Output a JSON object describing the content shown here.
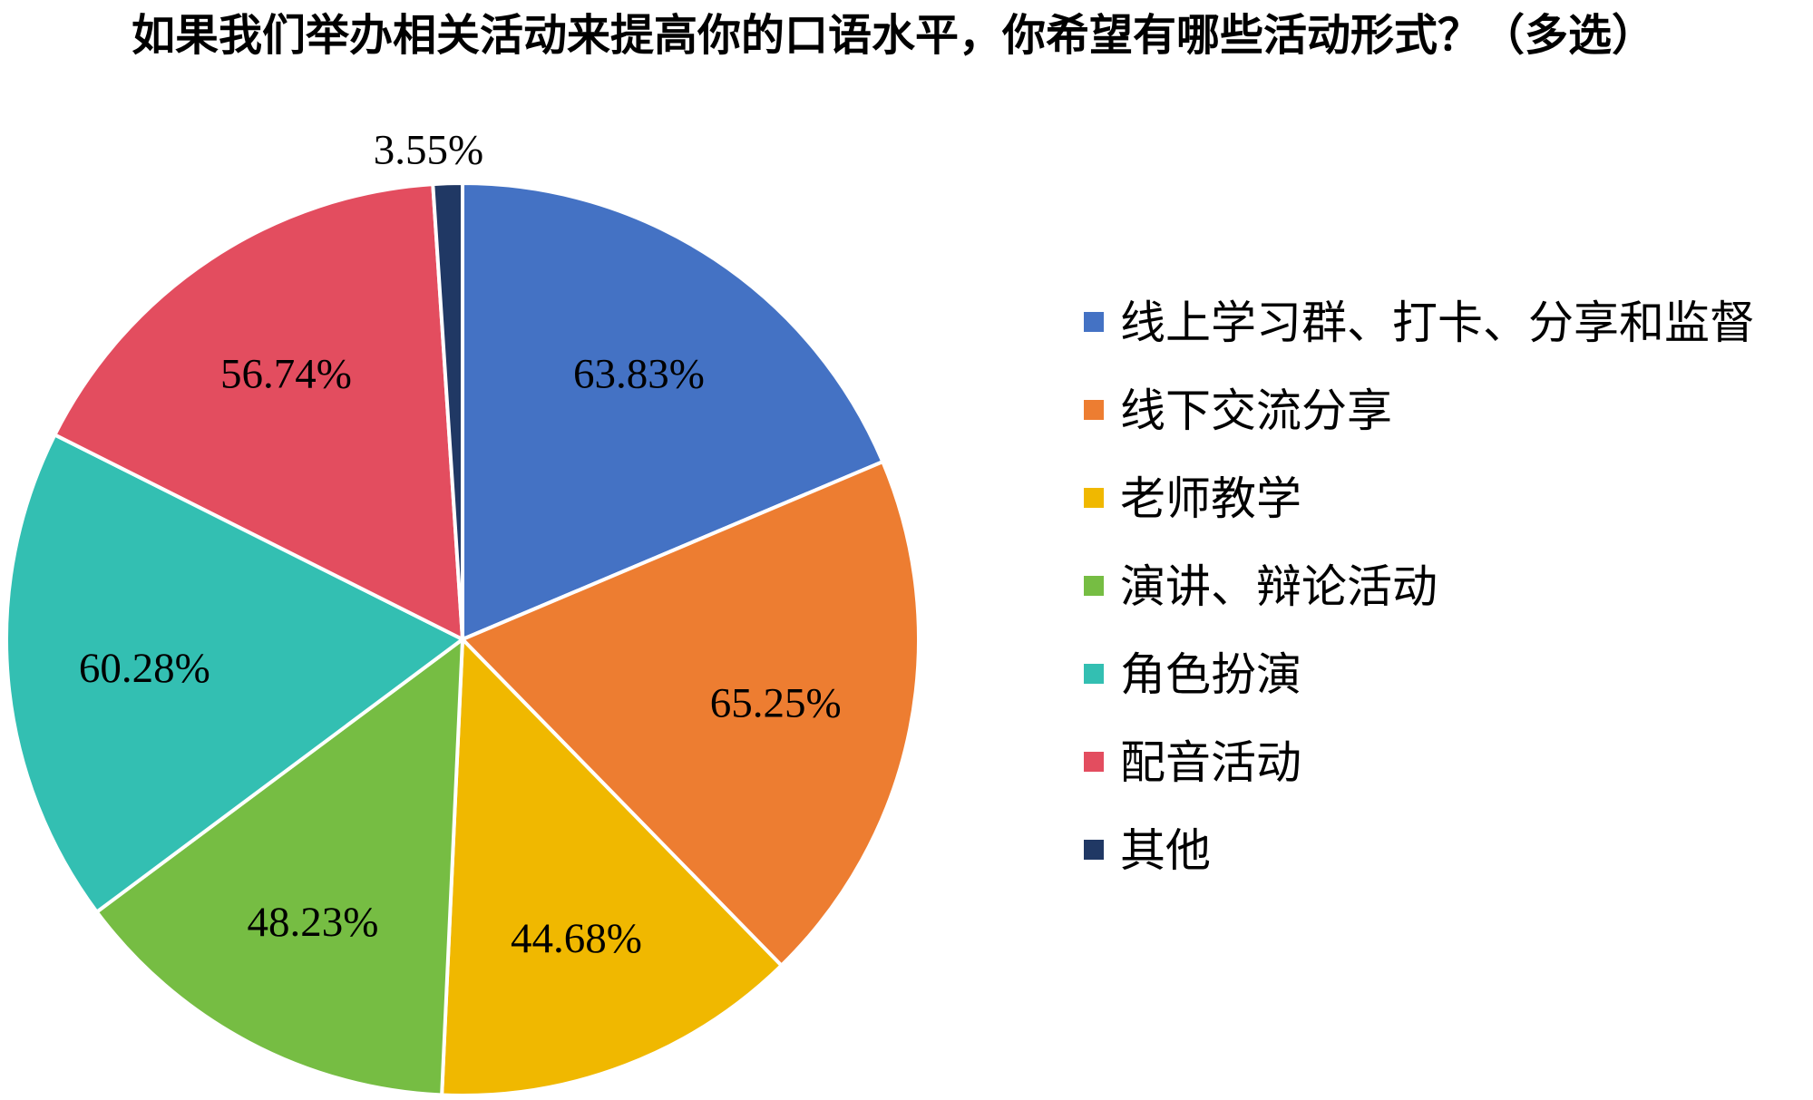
{
  "chart_data": {
    "type": "pie",
    "title": "如果我们举办相关活动来提高你的口语水平，你希望有哪些活动形式？（多选）",
    "legend_position": "right",
    "slices": [
      {
        "label": "线上学习群、打卡、分享和监督",
        "value": 63.83,
        "value_label": "63.83%",
        "color": "#4472C4"
      },
      {
        "label": "线下交流分享",
        "value": 65.25,
        "value_label": "65.25%",
        "color": "#ED7D31"
      },
      {
        "label": "老师教学",
        "value": 44.68,
        "value_label": "44.68%",
        "color": "#F0B800"
      },
      {
        "label": "演讲、辩论活动",
        "value": 48.23,
        "value_label": "48.23%",
        "color": "#76BD43"
      },
      {
        "label": "角色扮演",
        "value": 60.28,
        "value_label": "60.28%",
        "color": "#33BFB2"
      },
      {
        "label": "配音活动",
        "value": 56.74,
        "value_label": "56.74%",
        "color": "#E34D5F"
      },
      {
        "label": "其他",
        "value": 3.55,
        "value_label": "3.55%",
        "color": "#203864"
      }
    ]
  }
}
